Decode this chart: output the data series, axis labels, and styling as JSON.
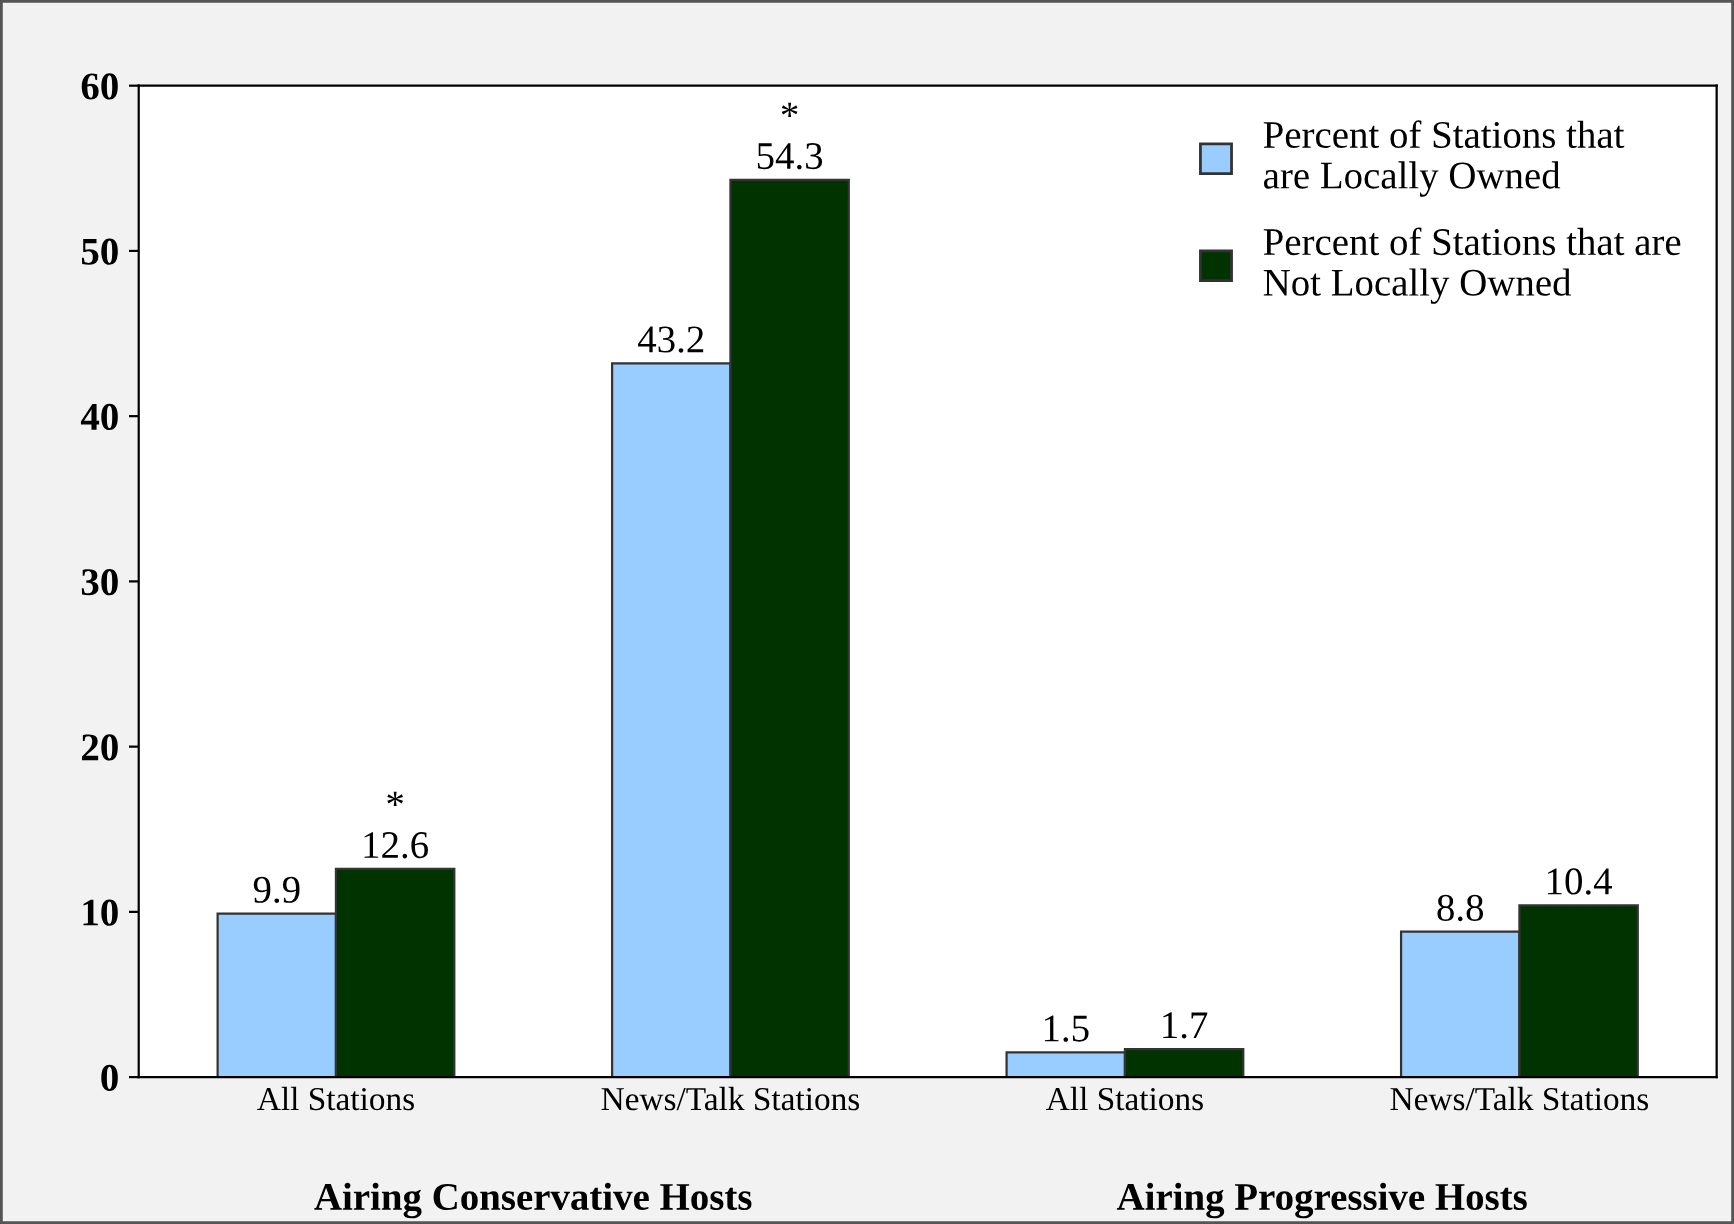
{
  "chart_data": {
    "type": "bar",
    "categories": [
      "All Stations",
      "News/Talk Stations",
      "All Stations",
      "News/Talk Stations"
    ],
    "series": [
      {
        "name": "Percent of Stations that\nare Locally Owned",
        "color": "#99ccff",
        "values": [
          9.9,
          43.2,
          1.5,
          8.8
        ],
        "value_labels": [
          "9.9",
          "43.2",
          "1.5",
          "8.8"
        ]
      },
      {
        "name": "Percent of Stations that are\nNot Locally Owned",
        "color": "#003300",
        "values": [
          12.6,
          54.3,
          1.7,
          10.4
        ],
        "value_labels": [
          "*\n12.6",
          "*\n54.3",
          "1.7",
          "10.4"
        ]
      }
    ],
    "ylim": [
      0,
      60
    ],
    "yticks": [
      0,
      10,
      20,
      30,
      40,
      50,
      60
    ],
    "grid": false,
    "legend": "top right",
    "annotations": [
      "Airing Conservative Hosts",
      "Airing Progressive Hosts"
    ]
  }
}
